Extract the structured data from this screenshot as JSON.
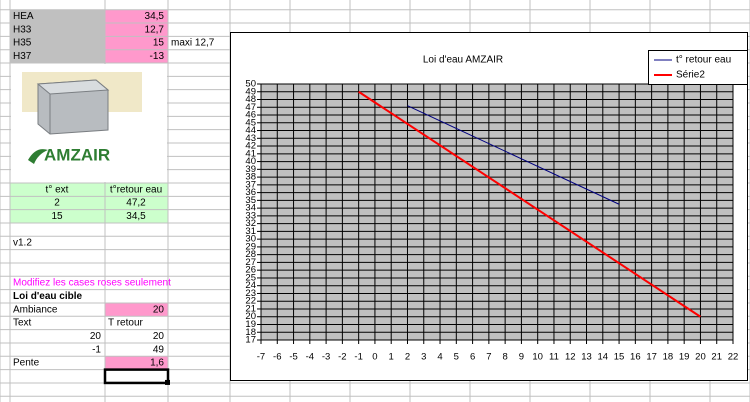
{
  "sheet": {
    "top": [
      {
        "label": "HEA",
        "value": "34,5"
      },
      {
        "label": "H33",
        "value": "12,7"
      },
      {
        "label": "H35",
        "value": "15"
      },
      {
        "label": "H37",
        "value": "-13"
      }
    ],
    "note": "maxi 12,7",
    "logo": "AMZAIR",
    "table": {
      "header": [
        "t° ext",
        "t°retour eau"
      ],
      "rows": [
        [
          "2",
          "47,2"
        ],
        [
          "15",
          "34,5"
        ]
      ]
    },
    "version": "v1.2",
    "instruction": "Modifiez les cases roses seulement",
    "section": "Loi d'eau cible",
    "ambiance": {
      "label": "Ambiance",
      "value": "20"
    },
    "params_header": [
      "Text",
      "T retour"
    ],
    "params": [
      [
        "20",
        "20"
      ],
      [
        "-1",
        "49"
      ]
    ],
    "pente": {
      "label": "Pente",
      "value": "1,6"
    }
  },
  "chart_data": {
    "type": "line",
    "title": "Loi d'eau AMZAIR",
    "series": [
      {
        "name": "t° retour eau",
        "color": "#000080",
        "x": [
          2,
          15
        ],
        "values": [
          47.2,
          34.5
        ]
      },
      {
        "name": "Série2",
        "color": "#ff0000",
        "x": [
          -1,
          20
        ],
        "values": [
          49,
          20
        ]
      }
    ],
    "xlim": [
      -7,
      22
    ],
    "xticks": [
      -7,
      -6,
      -5,
      -4,
      -3,
      -2,
      -1,
      0,
      1,
      2,
      3,
      4,
      5,
      6,
      7,
      8,
      9,
      10,
      11,
      12,
      13,
      14,
      15,
      16,
      17,
      18,
      19,
      20,
      21,
      22
    ],
    "ylim": [
      17,
      50
    ],
    "yticks": [
      17,
      18,
      19,
      20,
      21,
      22,
      23,
      24,
      25,
      26,
      27,
      28,
      29,
      30,
      31,
      32,
      33,
      34,
      35,
      36,
      37,
      38,
      39,
      40,
      41,
      42,
      43,
      44,
      45,
      46,
      47,
      48,
      49,
      50
    ],
    "grid": true,
    "legend": "top-right",
    "plot_background": "#c0c0c0"
  }
}
